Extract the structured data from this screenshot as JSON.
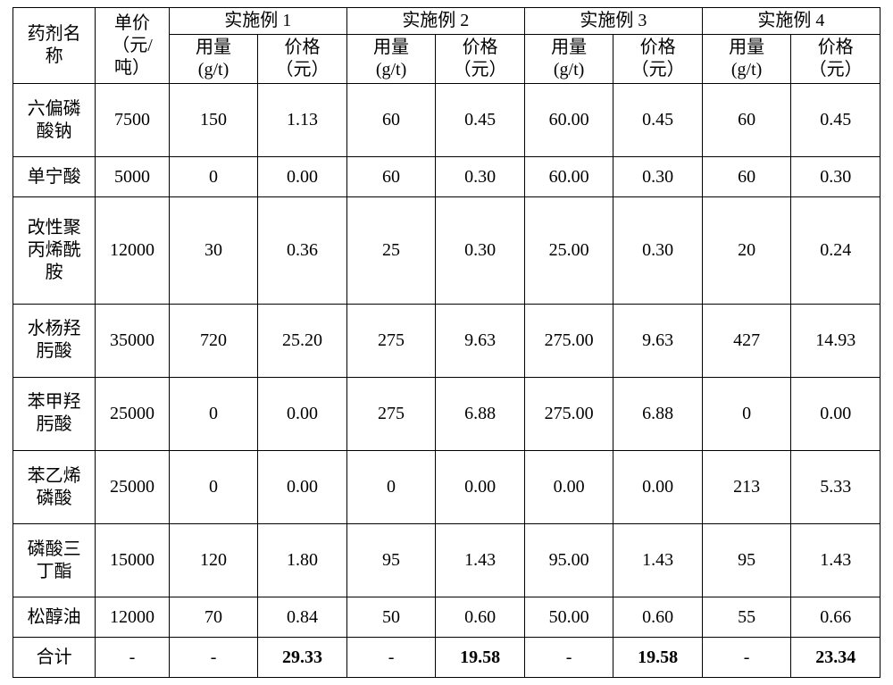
{
  "header": {
    "name_label": "药剂名\n称",
    "unit_price_label": "单价\n（元/\n吨）",
    "example_labels": [
      "实施例 1",
      "实施例 2",
      "实施例 3",
      "实施例 4"
    ],
    "dosage_label": "用量\n(g/t)",
    "price_label": "价格\n（元）"
  },
  "rows": [
    {
      "name": "六偏磷\n酸钠",
      "unit_price": "7500",
      "v": [
        "150",
        "1.13",
        "60",
        "0.45",
        "60.00",
        "0.45",
        "60",
        "0.45"
      ]
    },
    {
      "name": "单宁酸",
      "unit_price": "5000",
      "v": [
        "0",
        "0.00",
        "60",
        "0.30",
        "60.00",
        "0.30",
        "60",
        "0.30"
      ]
    },
    {
      "name": "改性聚\n丙烯酰\n胺",
      "unit_price": "12000",
      "v": [
        "30",
        "0.36",
        "25",
        "0.30",
        "25.00",
        "0.30",
        "20",
        "0.24"
      ]
    },
    {
      "name": "水杨羟\n肟酸",
      "unit_price": "35000",
      "v": [
        "720",
        "25.20",
        "275",
        "9.63",
        "275.00",
        "9.63",
        "427",
        "14.93"
      ]
    },
    {
      "name": "苯甲羟\n肟酸",
      "unit_price": "25000",
      "v": [
        "0",
        "0.00",
        "275",
        "6.88",
        "275.00",
        "6.88",
        "0",
        "0.00"
      ]
    },
    {
      "name": "苯乙烯\n磷酸",
      "unit_price": "25000",
      "v": [
        "0",
        "0.00",
        "0",
        "0.00",
        "0.00",
        "0.00",
        "213",
        "5.33"
      ]
    },
    {
      "name": "磷酸三\n丁酯",
      "unit_price": "15000",
      "v": [
        "120",
        "1.80",
        "95",
        "1.43",
        "95.00",
        "1.43",
        "95",
        "1.43"
      ]
    },
    {
      "name": "松醇油",
      "unit_price": "12000",
      "v": [
        "70",
        "0.84",
        "50",
        "0.60",
        "50.00",
        "0.60",
        "55",
        "0.66"
      ]
    }
  ],
  "total": {
    "label": "合计",
    "unit_price": "-",
    "v": [
      "-",
      "29.33",
      "-",
      "19.58",
      "-",
      "19.58",
      "-",
      "23.34"
    ],
    "bold_indices": [
      1,
      3,
      5,
      7
    ]
  },
  "style": {
    "background_color": "#ffffff",
    "text_color": "#000000",
    "border_color": "#000000",
    "font_family": "SimSun",
    "base_fontsize_pt": 15,
    "bold_weight": 700
  }
}
